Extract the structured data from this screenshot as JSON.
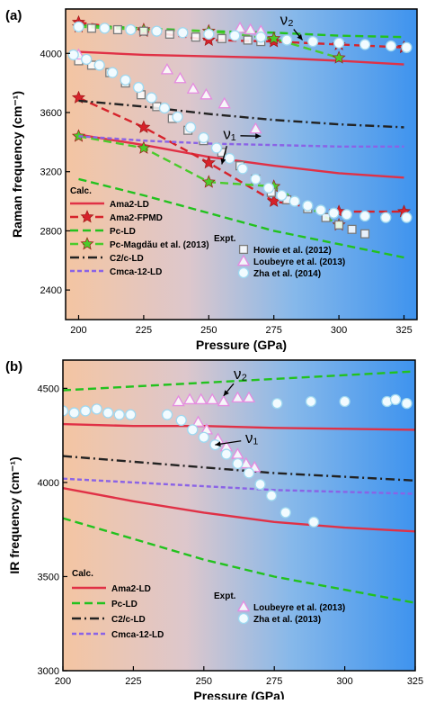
{
  "panels": [
    {
      "label": "(a)",
      "chart_data": {
        "type": "line",
        "xlabel": "Pressure (GPa)",
        "ylabel": "Raman frequency (cm⁻¹)",
        "xlim": [
          195,
          330
        ],
        "ylim": [
          2200,
          4300
        ],
        "xticks": [
          200,
          225,
          250,
          275,
          300,
          325
        ],
        "yticks": [
          2400,
          2800,
          3200,
          3600,
          4000
        ],
        "calc_title": "Calc.",
        "expt_title": "Expt.",
        "annotations": [
          {
            "text": "ν₂",
            "x": 280,
            "y": 4195,
            "arrow_to": [
              286,
              4090
            ]
          },
          {
            "text": "ν₁",
            "x": 258,
            "y": 3420,
            "arrow_to": [
              270,
              3440
            ],
            "arrow2_to": [
              255,
              3250
            ]
          }
        ],
        "series": [
          {
            "name": "Ama2-LD",
            "group": "calc",
            "style": "solid",
            "color": "#e03146",
            "marker": "none",
            "segments": [
              {
                "x": [
                  200,
                  225,
                  250,
                  275,
                  300,
                  325
                ],
                "y": [
                  4010,
                  3990,
                  3980,
                  3970,
                  3950,
                  3925
                ]
              },
              {
                "x": [
                  200,
                  225,
                  250,
                  275,
                  300,
                  325
                ],
                "y": [
                  3450,
                  3380,
                  3300,
                  3240,
                  3190,
                  3160
                ]
              }
            ]
          },
          {
            "name": "Ama2-FPMD",
            "group": "calc",
            "style": "dash",
            "color": "#d6232b",
            "marker": "star",
            "segments": [
              {
                "x": [
                  200,
                  225,
                  250,
                  275,
                  300,
                  325
                ],
                "y": [
                  4210,
                  4150,
                  4090,
                  4080,
                  4060,
                  4040
                ]
              },
              {
                "x": [
                  200,
                  225,
                  250,
                  275,
                  300,
                  325
                ],
                "y": [
                  3700,
                  3500,
                  3260,
                  3000,
                  2930,
                  2930
                ]
              }
            ]
          },
          {
            "name": "Pc-LD",
            "group": "calc",
            "style": "dash",
            "color": "#22c21e",
            "marker": "none",
            "segments": [
              {
                "x": [
                  200,
                  225,
                  250,
                  275,
                  300,
                  325
                ],
                "y": [
                  4190,
                  4170,
                  4150,
                  4140,
                  4120,
                  4110
                ]
              },
              {
                "x": [
                  200,
                  225,
                  250,
                  275,
                  300,
                  325
                ],
                "y": [
                  3150,
                  3040,
                  2920,
                  2800,
                  2710,
                  2620
                ]
              }
            ]
          },
          {
            "name": "Pc-Magdău et al. (2013)",
            "group": "calc",
            "style": "dash",
            "color": "#4acb2b",
            "marker": "star",
            "segments": [
              {
                "x": [
                  200,
                  225,
                  250,
                  275,
                  300
                ],
                "y": [
                  4180,
                  4160,
                  4150,
                  4100,
                  3970
                ]
              },
              {
                "x": [
                  200,
                  225,
                  250,
                  275,
                  300
                ],
                "y": [
                  3440,
                  3360,
                  3130,
                  3100,
                  2840
                ]
              }
            ]
          },
          {
            "name": "C2/c-LD",
            "group": "calc",
            "style": "dashdot",
            "color": "#222222",
            "marker": "none",
            "segments": [
              {
                "x": [
                  200,
                  225,
                  250,
                  275,
                  300,
                  325
                ],
                "y": [
                  3680,
                  3640,
                  3590,
                  3550,
                  3520,
                  3500
                ]
              }
            ]
          },
          {
            "name": "Cmca-12-LD",
            "group": "calc",
            "style": "shortdash",
            "color": "#8a63e6",
            "marker": "none",
            "segments": [
              {
                "x": [
                  200,
                  225,
                  250,
                  275,
                  300,
                  325
                ],
                "y": [
                  3440,
                  3410,
                  3390,
                  3380,
                  3370,
                  3370
                ]
              }
            ]
          },
          {
            "name": "Howie et al. (2012)",
            "group": "expt",
            "style": "none",
            "color": "#7a7a7a",
            "marker": "square",
            "points": {
              "x": [
                200,
                205,
                212,
                218,
                224,
                230,
                236,
                242,
                248,
                255,
                262,
                268,
                274,
                280,
                288,
                295,
                300,
                305,
                310,
                205,
                215,
                225,
                235,
                245,
                255,
                265,
                270
              ],
              "y": [
                3950,
                3920,
                3870,
                3800,
                3720,
                3640,
                3560,
                3480,
                3410,
                3330,
                3240,
                3150,
                3060,
                3010,
                2950,
                2890,
                2840,
                2810,
                2780,
                4170,
                4160,
                4150,
                4130,
                4110,
                4100,
                4090,
                4080
              ]
            }
          },
          {
            "name": "Loubeyre et al. (2013)",
            "group": "expt",
            "style": "none",
            "color": "#e58be0",
            "marker": "triangle",
            "points": {
              "x": [
                200,
                234,
                239,
                244,
                249,
                256,
                268,
                262,
                266,
                270
              ],
              "y": [
                3990,
                3890,
                3830,
                3760,
                3720,
                3660,
                3490,
                4170,
                4160,
                4150
              ]
            }
          },
          {
            "name": "Zha et al. (2014)",
            "group": "expt",
            "style": "none",
            "color": "#9fd8f0",
            "marker": "circle",
            "points": {
              "x": [
                198,
                203,
                208,
                213,
                218,
                223,
                228,
                233,
                238,
                243,
                248,
                253,
                258,
                263,
                268,
                273,
                278,
                283,
                288,
                293,
                298,
                303,
                310,
                318,
                326,
                200,
                210,
                220,
                230,
                240,
                250,
                260,
                270,
                280,
                290,
                300,
                310,
                320,
                326
              ],
              "y": [
                3990,
                3960,
                3920,
                3870,
                3820,
                3770,
                3700,
                3630,
                3570,
                3500,
                3430,
                3360,
                3290,
                3220,
                3150,
                3090,
                3040,
                3000,
                2970,
                2940,
                2920,
                2910,
                2900,
                2890,
                2890,
                4180,
                4170,
                4160,
                4150,
                4140,
                4130,
                4120,
                4110,
                4090,
                4080,
                4070,
                4060,
                4050,
                4040
              ]
            }
          }
        ]
      }
    },
    {
      "label": "(b)",
      "chart_data": {
        "type": "line",
        "xlabel": "Pressure (GPa)",
        "ylabel": "IR frequency (cm⁻¹)",
        "xlim": [
          200,
          325
        ],
        "ylim": [
          3000,
          4650
        ],
        "xticks": [
          200,
          225,
          250,
          275,
          300,
          325
        ],
        "yticks": [
          3000,
          3500,
          4000,
          4500
        ],
        "calc_title": "Calc.",
        "expt_title": "Expt.",
        "annotations": [
          {
            "text": "ν₂",
            "x": 263,
            "y": 4550,
            "arrow_to": [
              257,
              4460
            ]
          },
          {
            "text": "ν₁",
            "x": 267,
            "y": 4210,
            "arrow_to": [
              254,
              4200
            ]
          }
        ],
        "series": [
          {
            "name": "Ama2-LD",
            "group": "calc",
            "style": "solid",
            "color": "#e03146",
            "marker": "none",
            "segments": [
              {
                "x": [
                  200,
                  225,
                  250,
                  275,
                  300,
                  325
                ],
                "y": [
                  4310,
                  4300,
                  4300,
                  4290,
                  4285,
                  4280
                ]
              },
              {
                "x": [
                  200,
                  225,
                  250,
                  275,
                  300,
                  325
                ],
                "y": [
                  3970,
                  3900,
                  3840,
                  3790,
                  3760,
                  3740
                ]
              }
            ]
          },
          {
            "name": "Pc-LD",
            "group": "calc",
            "style": "dash",
            "color": "#22c21e",
            "marker": "none",
            "segments": [
              {
                "x": [
                  200,
                  225,
                  250,
                  275,
                  300,
                  325
                ],
                "y": [
                  4490,
                  4510,
                  4530,
                  4550,
                  4570,
                  4590
                ]
              },
              {
                "x": [
                  200,
                  225,
                  250,
                  275,
                  300,
                  325
                ],
                "y": [
                  3810,
                  3700,
                  3590,
                  3500,
                  3430,
                  3360
                ]
              }
            ]
          },
          {
            "name": "C2/c-LD",
            "group": "calc",
            "style": "dashdot",
            "color": "#222222",
            "marker": "none",
            "segments": [
              {
                "x": [
                  200,
                  225,
                  250,
                  275,
                  300,
                  325
                ],
                "y": [
                  4140,
                  4110,
                  4080,
                  4050,
                  4030,
                  4010
                ]
              }
            ]
          },
          {
            "name": "Cmca-12-LD",
            "group": "calc",
            "style": "shortdash",
            "color": "#8a63e6",
            "marker": "none",
            "segments": [
              {
                "x": [
                  200,
                  225,
                  250,
                  275,
                  300,
                  325
                ],
                "y": [
                  4020,
                  4000,
                  3980,
                  3960,
                  3950,
                  3940
                ]
              }
            ]
          },
          {
            "name": "Loubeyre et al. (2013)",
            "group": "expt",
            "style": "none",
            "color": "#e58be0",
            "marker": "triangle",
            "points": {
              "x": [
                241,
                245,
                249,
                253,
                257,
                262,
                266,
                248,
                251,
                255,
                258,
                262,
                265,
                268
              ],
              "y": [
                4430,
                4440,
                4440,
                4440,
                4430,
                4450,
                4450,
                4320,
                4280,
                4230,
                4190,
                4150,
                4100,
                4080
              ]
            }
          },
          {
            "name": "Zha et al. (2013)",
            "group": "expt",
            "style": "none",
            "color": "#9fd8f0",
            "marker": "circle",
            "points": {
              "x": [
                200,
                204,
                208,
                212,
                216,
                220,
                224,
                237,
                242,
                246,
                250,
                254,
                258,
                262,
                266,
                270,
                274,
                279,
                289,
                276,
                288,
                300,
                315,
                318,
                322
              ],
              "y": [
                4380,
                4370,
                4380,
                4390,
                4370,
                4360,
                4360,
                4360,
                4330,
                4280,
                4240,
                4200,
                4150,
                4100,
                4050,
                3990,
                3930,
                3840,
                3790,
                4420,
                4430,
                4430,
                4430,
                4440,
                4420
              ]
            }
          }
        ]
      }
    }
  ]
}
